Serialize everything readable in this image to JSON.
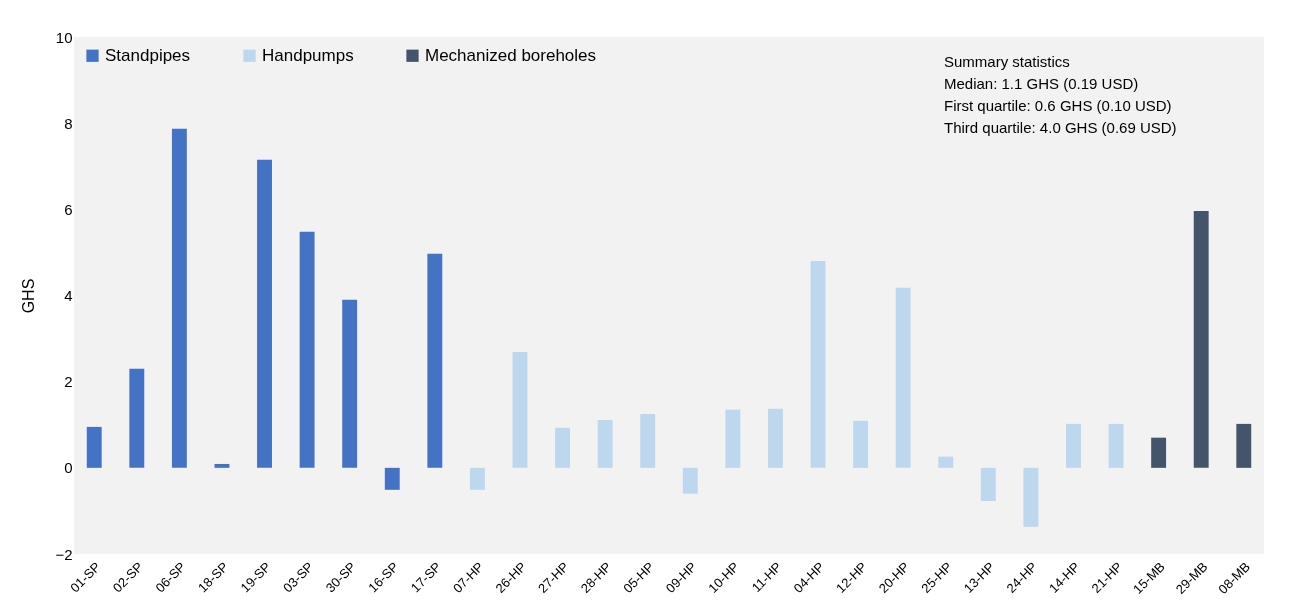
{
  "chart_data": {
    "type": "bar",
    "ylabel": "GHS",
    "categories": [
      "01-SP",
      "02-SP",
      "06-SP",
      "18-SP",
      "19-SP",
      "03-SP",
      "30-SP",
      "16-SP",
      "17-SP",
      "07-HP",
      "26-HP",
      "27-HP",
      "28-HP",
      "05-HP",
      "09-HP",
      "10-HP",
      "11-HP",
      "04-HP",
      "12-HP",
      "20-HP",
      "25-HP",
      "13-HP",
      "24-HP",
      "14-HP",
      "21-HP",
      "15-MB",
      "29-MB",
      "08-MB"
    ],
    "series": [
      {
        "name": "Standpipes",
        "color": "#4472c4",
        "values": [
          0.95,
          2.3,
          7.87,
          0.09,
          7.15,
          5.48,
          3.9,
          -0.51,
          4.97,
          null,
          null,
          null,
          null,
          null,
          null,
          null,
          null,
          null,
          null,
          null,
          null,
          null,
          null,
          null,
          null,
          null,
          null,
          null
        ]
      },
      {
        "name": "Handpumps",
        "color": "#bdd7ee",
        "values": [
          null,
          null,
          null,
          null,
          null,
          null,
          null,
          null,
          null,
          -0.51,
          2.69,
          0.93,
          1.11,
          1.25,
          -0.6,
          1.35,
          1.37,
          4.8,
          1.09,
          4.18,
          0.26,
          -0.77,
          -1.37,
          1.02,
          1.02,
          null,
          null,
          null
        ]
      },
      {
        "name": "Mechanized boreholes",
        "color": "#44546a",
        "values": [
          null,
          null,
          null,
          null,
          null,
          null,
          null,
          null,
          null,
          null,
          null,
          null,
          null,
          null,
          null,
          null,
          null,
          null,
          null,
          null,
          null,
          null,
          null,
          null,
          null,
          0.7,
          5.96,
          1.02
        ]
      }
    ],
    "ylim": [
      -2,
      10
    ],
    "yticks": [
      -2,
      0,
      2,
      4,
      6,
      8,
      10
    ],
    "grid": false,
    "legend": "top left",
    "annotations": [
      "Summary statistics",
      "Median: 1.1 GHS (0.19 USD)",
      "First quartile: 0.6 GHS (0.10 USD)",
      "Third quartile: 4.0 GHS (0.69 USD)"
    ]
  }
}
